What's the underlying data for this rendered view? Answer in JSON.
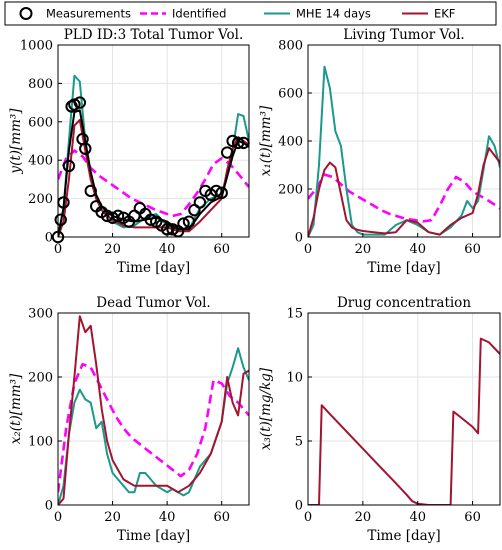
{
  "legend": {
    "items": [
      {
        "label": "Measurements",
        "style": "circle",
        "color": "#000000"
      },
      {
        "label": "Identified",
        "style": "dashed",
        "color": "#ff00ff"
      },
      {
        "label": "MHE 14 days",
        "style": "solid",
        "color": "#1a9a8a"
      },
      {
        "label": "EKF",
        "style": "solid",
        "color": "#a2142f"
      }
    ]
  },
  "chart_data": [
    {
      "type": "line",
      "title": "PLD ID:3 Total Tumor Vol.",
      "xlabel": "Time [day]",
      "ylabel": "y(t)[mm³]",
      "xlim": [
        0,
        70
      ],
      "ylim": [
        0,
        1000
      ],
      "xticks": [
        "0",
        "20",
        "40",
        "60"
      ],
      "yticks": [
        "0",
        "200",
        "400",
        "600",
        "800",
        "1000"
      ],
      "grid": true,
      "series": [
        {
          "name": "Measurements",
          "style": "markers",
          "color": "#000000",
          "x": [
            0,
            1,
            2,
            4,
            5,
            6,
            8,
            9,
            10,
            12,
            14,
            16,
            18,
            20,
            22,
            24,
            26,
            28,
            30,
            32,
            34,
            36,
            38,
            40,
            42,
            44,
            46,
            48,
            50,
            52,
            54,
            56,
            58,
            60,
            62,
            64,
            66,
            68
          ],
          "y": [
            0,
            90,
            180,
            370,
            680,
            690,
            700,
            510,
            460,
            240,
            160,
            130,
            110,
            100,
            110,
            100,
            80,
            110,
            150,
            120,
            90,
            80,
            60,
            40,
            40,
            30,
            70,
            80,
            140,
            180,
            240,
            220,
            240,
            230,
            440,
            500,
            490,
            490
          ]
        },
        {
          "name": "Identified",
          "style": "dashed",
          "color": "#ff00ff",
          "x": [
            0,
            3,
            6,
            9,
            12,
            15,
            18,
            21,
            24,
            27,
            30,
            33,
            36,
            39,
            42,
            45,
            48,
            51,
            54,
            57,
            60,
            63,
            66,
            70
          ],
          "y": [
            300,
            410,
            450,
            420,
            360,
            320,
            290,
            260,
            230,
            200,
            180,
            160,
            140,
            125,
            110,
            120,
            170,
            230,
            300,
            380,
            410,
            380,
            330,
            260
          ]
        },
        {
          "name": "MHE 14 days",
          "style": "solid",
          "color": "#1a9a8a",
          "x": [
            0,
            2,
            4,
            6,
            8,
            10,
            12,
            14,
            16,
            18,
            20,
            24,
            28,
            32,
            36,
            40,
            44,
            48,
            52,
            56,
            60,
            64,
            66,
            68,
            70
          ],
          "y": [
            0,
            150,
            500,
            840,
            810,
            500,
            300,
            200,
            140,
            120,
            80,
            50,
            60,
            100,
            120,
            60,
            40,
            40,
            150,
            200,
            220,
            450,
            640,
            630,
            500
          ]
        },
        {
          "name": "EKF",
          "style": "solid",
          "color": "#a2142f",
          "x": [
            0,
            2,
            4,
            6,
            8,
            10,
            12,
            14,
            16,
            18,
            20,
            24,
            28,
            32,
            36,
            40,
            44,
            48,
            52,
            56,
            60,
            62,
            64,
            66,
            68,
            70
          ],
          "y": [
            0,
            80,
            300,
            580,
            610,
            450,
            300,
            200,
            140,
            110,
            90,
            60,
            50,
            50,
            50,
            50,
            30,
            30,
            80,
            140,
            200,
            350,
            460,
            520,
            500,
            480
          ]
        },
        {
          "name": "",
          "style": "solid",
          "color": "#000000",
          "x": [
            0,
            2,
            4,
            6,
            8,
            10,
            12,
            14,
            16,
            18,
            20,
            24,
            28,
            32,
            36,
            40,
            44,
            48,
            52,
            56,
            60,
            64,
            66,
            68,
            70
          ],
          "y": [
            0,
            150,
            450,
            650,
            660,
            500,
            340,
            220,
            160,
            130,
            110,
            90,
            80,
            90,
            100,
            80,
            40,
            40,
            120,
            180,
            210,
            420,
            500,
            490,
            470
          ]
        }
      ]
    },
    {
      "type": "line",
      "title": "Living Tumor Vol.",
      "xlabel": "Time [day]",
      "ylabel": "x₁(t)[mm³]",
      "xlim": [
        0,
        70
      ],
      "ylim": [
        0,
        800
      ],
      "xticks": [
        "0",
        "20",
        "40",
        "60"
      ],
      "yticks": [
        "0",
        "200",
        "400",
        "600",
        "800"
      ],
      "grid": true,
      "series": [
        {
          "name": "Identified",
          "style": "dashed",
          "color": "#ff00ff",
          "x": [
            0,
            3,
            6,
            9,
            12,
            15,
            18,
            21,
            24,
            27,
            30,
            33,
            36,
            39,
            42,
            45,
            48,
            51,
            54,
            57,
            60,
            63,
            66,
            70
          ],
          "y": [
            160,
            200,
            260,
            250,
            220,
            190,
            170,
            150,
            130,
            110,
            95,
            85,
            75,
            70,
            65,
            70,
            130,
            200,
            250,
            230,
            190,
            170,
            150,
            120
          ]
        },
        {
          "name": "MHE 14 days",
          "style": "solid",
          "color": "#1a9a8a",
          "x": [
            0,
            2,
            4,
            6,
            8,
            10,
            12,
            14,
            16,
            18,
            20,
            24,
            28,
            32,
            36,
            40,
            44,
            48,
            52,
            56,
            58,
            60,
            62,
            64,
            66,
            68,
            70
          ],
          "y": [
            0,
            50,
            300,
            710,
            620,
            440,
            380,
            200,
            50,
            20,
            10,
            10,
            10,
            50,
            70,
            50,
            20,
            10,
            40,
            90,
            150,
            120,
            150,
            280,
            420,
            380,
            290
          ]
        },
        {
          "name": "EKF",
          "style": "solid",
          "color": "#a2142f",
          "x": [
            0,
            2,
            4,
            6,
            8,
            10,
            12,
            14,
            16,
            18,
            20,
            24,
            28,
            32,
            36,
            40,
            44,
            48,
            52,
            56,
            60,
            62,
            64,
            66,
            68,
            70
          ],
          "y": [
            0,
            80,
            200,
            280,
            310,
            290,
            180,
            70,
            40,
            30,
            25,
            20,
            15,
            20,
            70,
            60,
            20,
            10,
            50,
            80,
            100,
            180,
            300,
            370,
            340,
            310
          ]
        }
      ]
    },
    {
      "type": "line",
      "title": "Dead Tumor Vol.",
      "xlabel": "Time [day]",
      "ylabel": "x₂(t)[mm³]",
      "xlim": [
        0,
        70
      ],
      "ylim": [
        0,
        300
      ],
      "xticks": [
        "0",
        "20",
        "40",
        "60"
      ],
      "yticks": [
        "0",
        "100",
        "200",
        "300"
      ],
      "grid": true,
      "series": [
        {
          "name": "Identified",
          "style": "dashed",
          "color": "#ff00ff",
          "x": [
            0,
            3,
            6,
            9,
            12,
            15,
            18,
            21,
            24,
            27,
            30,
            33,
            36,
            39,
            42,
            45,
            48,
            51,
            54,
            57,
            60,
            63,
            66,
            70
          ],
          "y": [
            20,
            120,
            190,
            220,
            215,
            190,
            165,
            140,
            120,
            105,
            95,
            85,
            75,
            65,
            55,
            45,
            55,
            80,
            120,
            195,
            190,
            170,
            160,
            140
          ]
        },
        {
          "name": "MHE 14 days",
          "style": "solid",
          "color": "#1a9a8a",
          "x": [
            0,
            2,
            4,
            6,
            8,
            10,
            12,
            14,
            16,
            18,
            20,
            22,
            24,
            26,
            28,
            30,
            32,
            34,
            36,
            38,
            40,
            42,
            44,
            46,
            48,
            52,
            56,
            60,
            62,
            64,
            66,
            68,
            70
          ],
          "y": [
            0,
            30,
            110,
            160,
            180,
            165,
            160,
            120,
            130,
            80,
            50,
            40,
            30,
            20,
            20,
            50,
            50,
            40,
            30,
            25,
            20,
            25,
            20,
            15,
            20,
            60,
            80,
            130,
            190,
            215,
            245,
            215,
            195
          ]
        },
        {
          "name": "EKF",
          "style": "solid",
          "color": "#a2142f",
          "x": [
            0,
            2,
            4,
            6,
            8,
            10,
            12,
            14,
            16,
            18,
            20,
            24,
            28,
            32,
            36,
            40,
            44,
            48,
            52,
            56,
            60,
            62,
            64,
            66,
            68,
            70
          ],
          "y": [
            0,
            10,
            110,
            200,
            295,
            270,
            280,
            220,
            150,
            100,
            70,
            40,
            30,
            30,
            30,
            30,
            20,
            30,
            50,
            80,
            130,
            200,
            160,
            140,
            205,
            210
          ]
        }
      ]
    },
    {
      "type": "line",
      "title": "Drug concentration",
      "xlabel": "Time [day]",
      "ylabel": "x₃(t)[mg/kg]",
      "xlim": [
        0,
        70
      ],
      "ylim": [
        0,
        15
      ],
      "xticks": [
        "0",
        "20",
        "40",
        "60"
      ],
      "yticks": [
        "0",
        "5",
        "10",
        "15"
      ],
      "grid": true,
      "series": [
        {
          "name": "EKF",
          "style": "solid",
          "color": "#a2142f",
          "x": [
            0,
            4,
            5,
            8,
            12,
            16,
            20,
            24,
            28,
            32,
            36,
            38,
            40,
            44,
            48,
            52,
            53,
            56,
            60,
            62,
            63,
            66,
            70
          ],
          "y": [
            0,
            0,
            7.8,
            7.1,
            6.2,
            5.3,
            4.4,
            3.5,
            2.6,
            1.7,
            0.8,
            0.3,
            0.1,
            0.0,
            0.0,
            0.0,
            7.3,
            6.8,
            6.1,
            5.6,
            13.0,
            12.7,
            11.8
          ]
        }
      ]
    }
  ]
}
